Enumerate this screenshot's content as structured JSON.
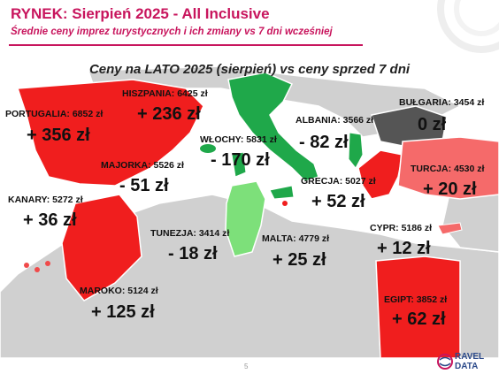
{
  "header": {
    "title": "RYNEK: Sierpień 2025 - All Inclusive",
    "subtitle": "Średnie ceny imprez turystycznych i ich zmiany vs 7 dni wcześniej"
  },
  "map_title": "Ceny na LATO 2025 (sierpień) vs ceny sprzed 7 dni",
  "colors": {
    "increase": "#f01e1e",
    "decrease": "#1fa84a",
    "decrease_light": "#7de07a",
    "no_change": "#555555",
    "land": "#d0d0d0",
    "accent": "#c8155d"
  },
  "countries": [
    {
      "name": "PORTUGALIA: 6852 zł",
      "change": "+ 356 zł"
    },
    {
      "name": "HISZPANIA: 6425 zł",
      "change": "+ 236 zł"
    },
    {
      "name": "WŁOCHY: 5831 zł",
      "change": "- 170 zł"
    },
    {
      "name": "ALBANIA: 3566 zł",
      "change": "- 82 zł"
    },
    {
      "name": "BUŁGARIA: 3454 zł",
      "change": "0 zł"
    },
    {
      "name": "MAJORKA: 5526 zł",
      "change": "- 51 zł"
    },
    {
      "name": "KANARY: 5272 zł",
      "change": "+ 36 zł"
    },
    {
      "name": "GRECJA: 5027 zł",
      "change": "+ 52 zł"
    },
    {
      "name": "TURCJA: 4530 zł",
      "change": "+ 20 zł"
    },
    {
      "name": "TUNEZJA: 3414 zł",
      "change": "- 18 zł"
    },
    {
      "name": "MALTA: 4779 zł",
      "change": "+ 25 zł"
    },
    {
      "name": "CYPR: 5186 zł",
      "change": "+ 12 zł"
    },
    {
      "name": "MAROKO: 5124 zł",
      "change": "+ 125 zł"
    },
    {
      "name": "EGIPT: 3852 zł",
      "change": "+ 62 zł"
    }
  ],
  "footer": {
    "page": "5",
    "logo_line1": "RAVEL",
    "logo_line2": "DATA"
  }
}
